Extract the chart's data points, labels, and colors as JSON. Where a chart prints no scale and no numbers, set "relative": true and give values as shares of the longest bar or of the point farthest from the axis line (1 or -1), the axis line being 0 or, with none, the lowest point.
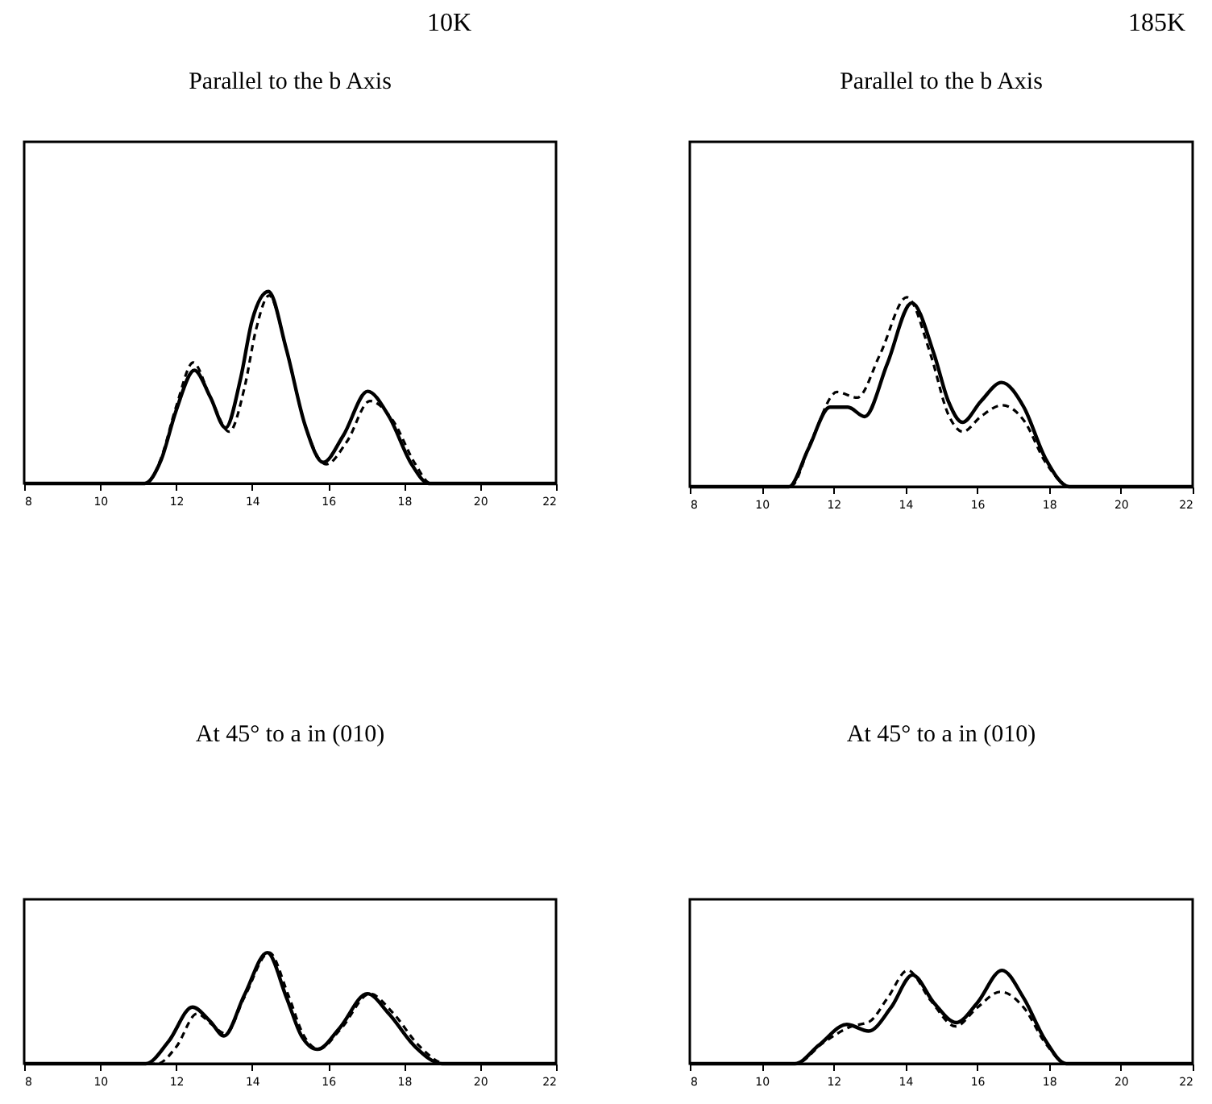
{
  "chart_data": [
    {
      "type": "line",
      "title": "Parallel to the b Axis",
      "annotations": [
        "10K"
      ],
      "relative": true,
      "xlim": [
        8,
        22
      ],
      "xticks": [
        8,
        10,
        12,
        14,
        16,
        18,
        20,
        22
      ],
      "marker": "none",
      "series": [
        {
          "color": "#000000",
          "line_style": "solid",
          "x": [
            8,
            10.5,
            11.17,
            11.6,
            12.0,
            12.48,
            12.9,
            13.3,
            13.7,
            14.0,
            14.43,
            14.9,
            15.4,
            15.87,
            16.4,
            17.04,
            17.6,
            18.2,
            18.65,
            20,
            22
          ],
          "values": [
            0,
            0,
            0,
            0.12,
            0.38,
            0.59,
            0.45,
            0.29,
            0.55,
            0.85,
            1.0,
            0.7,
            0.3,
            0.11,
            0.25,
            0.48,
            0.35,
            0.1,
            0,
            0,
            0
          ]
        },
        {
          "color": "#000000",
          "line_style": "dashed",
          "x": [
            8,
            10.5,
            11.2,
            11.6,
            12.0,
            12.45,
            12.9,
            13.4,
            13.8,
            14.1,
            14.45,
            14.9,
            15.4,
            15.95,
            16.5,
            17.1,
            17.7,
            18.3,
            18.7,
            20,
            22
          ],
          "values": [
            0,
            0,
            0,
            0.13,
            0.4,
            0.63,
            0.45,
            0.27,
            0.5,
            0.8,
            0.98,
            0.7,
            0.3,
            0.1,
            0.22,
            0.43,
            0.33,
            0.1,
            0,
            0,
            0
          ]
        }
      ]
    },
    {
      "type": "line",
      "title": "Parallel to the b Axis",
      "annotations": [
        "185K"
      ],
      "relative": true,
      "xlim": [
        8,
        22
      ],
      "xticks": [
        8,
        10,
        12,
        14,
        16,
        18,
        20,
        22
      ],
      "marker": "none",
      "series": [
        {
          "color": "#000000",
          "line_style": "solid",
          "x": [
            8,
            10.2,
            10.76,
            11.3,
            11.9,
            12.4,
            12.87,
            13.5,
            14.18,
            14.8,
            15.2,
            15.59,
            16.1,
            16.68,
            17.3,
            17.9,
            18.57,
            20,
            22
          ],
          "values": [
            0,
            0,
            0,
            0.2,
            0.42,
            0.42,
            0.37,
            0.65,
            0.97,
            0.7,
            0.45,
            0.34,
            0.45,
            0.55,
            0.42,
            0.15,
            0,
            0,
            0
          ]
        },
        {
          "color": "#000000",
          "line_style": "dashed",
          "x": [
            8,
            10.2,
            10.8,
            11.4,
            12.1,
            12.66,
            13.3,
            14.04,
            14.7,
            15.2,
            15.6,
            16.1,
            16.7,
            17.3,
            17.9,
            18.6,
            20,
            22
          ],
          "values": [
            0,
            0,
            0,
            0.25,
            0.5,
            0.47,
            0.7,
            1.0,
            0.7,
            0.38,
            0.29,
            0.37,
            0.43,
            0.35,
            0.13,
            0,
            0,
            0
          ]
        }
      ]
    },
    {
      "type": "line",
      "title": "At 45° to a in (010)",
      "relative": true,
      "xlim": [
        8,
        22
      ],
      "xticks": [
        8,
        10,
        12,
        14,
        16,
        18,
        20,
        22
      ],
      "marker": "none",
      "series": [
        {
          "color": "#000000",
          "line_style": "solid",
          "x": [
            8,
            10.7,
            11.2,
            11.8,
            12.43,
            12.9,
            13.26,
            13.8,
            14.4,
            14.9,
            15.3,
            15.72,
            16.3,
            17.03,
            17.6,
            18.3,
            19.0,
            20,
            22
          ],
          "values": [
            0,
            0,
            0,
            0.2,
            0.51,
            0.38,
            0.25,
            0.62,
            1.0,
            0.6,
            0.25,
            0.13,
            0.32,
            0.63,
            0.45,
            0.15,
            0,
            0,
            0
          ]
        },
        {
          "color": "#000000",
          "line_style": "dashed",
          "x": [
            8,
            11.0,
            11.5,
            12.0,
            12.55,
            12.95,
            13.3,
            13.8,
            14.45,
            14.95,
            15.35,
            15.75,
            16.35,
            17.1,
            17.7,
            18.4,
            19.1,
            20,
            22
          ],
          "values": [
            0,
            0,
            0,
            0.15,
            0.45,
            0.35,
            0.27,
            0.6,
            1.0,
            0.62,
            0.26,
            0.13,
            0.32,
            0.63,
            0.46,
            0.16,
            0,
            0,
            0
          ]
        }
      ]
    },
    {
      "type": "line",
      "title": "At 45° to a in (010)",
      "relative": true,
      "xlim": [
        8,
        22
      ],
      "xticks": [
        8,
        10,
        12,
        14,
        16,
        18,
        20,
        22
      ],
      "marker": "none",
      "series": [
        {
          "color": "#000000",
          "line_style": "solid",
          "x": [
            8,
            10.4,
            10.93,
            11.6,
            12.37,
            12.98,
            13.6,
            14.2,
            14.8,
            15.42,
            16.0,
            16.69,
            17.3,
            17.9,
            18.48,
            20,
            22
          ],
          "values": [
            0,
            0,
            0,
            0.2,
            0.42,
            0.35,
            0.6,
            0.95,
            0.65,
            0.44,
            0.65,
            1.0,
            0.7,
            0.25,
            0,
            0,
            0
          ]
        },
        {
          "color": "#000000",
          "line_style": "dashed",
          "x": [
            8,
            10.4,
            10.95,
            11.7,
            12.5,
            13.0,
            13.5,
            14.07,
            14.7,
            15.4,
            16.0,
            16.65,
            17.3,
            17.9,
            18.5,
            20,
            22
          ],
          "values": [
            0,
            0,
            0,
            0.22,
            0.4,
            0.45,
            0.7,
            1.0,
            0.68,
            0.4,
            0.6,
            0.77,
            0.6,
            0.22,
            0,
            0,
            0
          ]
        }
      ]
    }
  ]
}
